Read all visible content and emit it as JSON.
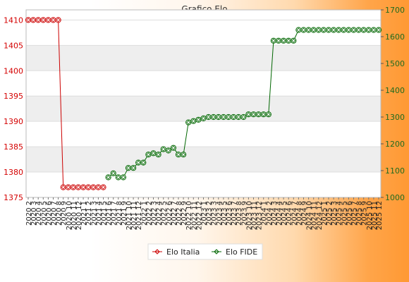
{
  "chart_data": {
    "type": "line",
    "title": "Grafico Elo",
    "x": [
      "2020 2",
      "2020 3",
      "2020 4",
      "2020 5",
      "2020 6",
      "2020 7",
      "2020 8",
      "2020 9",
      "2020 10",
      "2020 11",
      "2020 12",
      "2021 1",
      "2021 2",
      "2021 3",
      "2021 4",
      "2021 5",
      "2021 6",
      "2021 7",
      "2021 8",
      "2021 9",
      "2021 10",
      "2021 11",
      "2021 12",
      "2022 1",
      "2022 2",
      "2022 3",
      "2022 4",
      "2022 5",
      "2022 6",
      "2022 7",
      "2022 8",
      "2022 9",
      "2022 10",
      "2022 11",
      "2022 12",
      "2023 1",
      "2023 2",
      "2023 3",
      "2023 4",
      "2023 5",
      "2023 6",
      "2023 7",
      "2023 8",
      "2023 9",
      "2023 10",
      "2023 11",
      "2023 12",
      "2024 1",
      "2024 2",
      "2024 3",
      "2024 4",
      "2024 5",
      "2024 6",
      "2024 7",
      "2024 8",
      "2024 9",
      "2024 10",
      "2024 11",
      "2024 12",
      "2025 1",
      "2025 2",
      "2025 3",
      "2025 4",
      "2025 5",
      "2025 6",
      "2025 7",
      "2025 8",
      "2025 9",
      "2025 10",
      "2025 11",
      "2025 12"
    ],
    "series": [
      {
        "name": "Elo Italia",
        "axis": "left",
        "color": "#cc0000",
        "values": [
          1410,
          1410,
          1410,
          1410,
          1410,
          1410,
          1410,
          1377,
          1377,
          1377,
          1377,
          1377,
          1377,
          1377,
          1377,
          1377,
          null,
          null,
          null,
          null,
          null,
          null,
          null,
          null,
          null,
          null,
          null,
          null,
          null,
          null,
          null,
          null,
          null,
          null,
          null,
          null,
          null,
          null,
          null,
          null,
          null,
          null,
          null,
          null,
          null,
          null,
          null,
          null,
          null,
          null,
          null,
          null,
          null,
          null,
          null,
          null,
          null,
          null,
          null,
          null,
          null,
          null,
          null,
          null,
          null,
          null,
          null,
          null,
          null,
          null,
          null
        ]
      },
      {
        "name": "Elo FIDE",
        "axis": "right",
        "color": "#006600",
        "values": [
          null,
          null,
          null,
          null,
          null,
          null,
          null,
          null,
          null,
          null,
          null,
          null,
          null,
          null,
          null,
          null,
          1075,
          1090,
          1075,
          1075,
          1110,
          1110,
          1130,
          1130,
          1160,
          1165,
          1160,
          1180,
          1175,
          1185,
          1160,
          1160,
          1280,
          1285,
          1290,
          1295,
          1300,
          1300,
          1300,
          1300,
          1300,
          1300,
          1300,
          1300,
          1310,
          1310,
          1310,
          1310,
          1310,
          1585,
          1585,
          1585,
          1585,
          1585,
          1625,
          1625,
          1625,
          1625,
          1625,
          1625,
          1625,
          1625,
          1625,
          1625,
          1625,
          1625,
          1625,
          1625,
          1625,
          1625,
          1625
        ]
      }
    ],
    "y_left": {
      "ticks": [
        1375,
        1380,
        1385,
        1390,
        1395,
        1400,
        1405,
        1410
      ],
      "labels": [
        "1375",
        "1380",
        "1385",
        "1390",
        "1395",
        "1400",
        "1405",
        "1410"
      ],
      "ylim": [
        1375,
        1412
      ],
      "color": "#d40000"
    },
    "y_right": {
      "ticks": [
        1000,
        1100,
        1200,
        1300,
        1400,
        1500,
        1600,
        1700
      ],
      "labels": [
        "1000",
        "1100",
        "1200",
        "1300",
        "1400",
        "1500",
        "1600",
        "1700"
      ],
      "ylim": [
        1000,
        1700
      ],
      "color": "#1e6b1e"
    },
    "grid": true,
    "legend_position": "bottom-center"
  }
}
